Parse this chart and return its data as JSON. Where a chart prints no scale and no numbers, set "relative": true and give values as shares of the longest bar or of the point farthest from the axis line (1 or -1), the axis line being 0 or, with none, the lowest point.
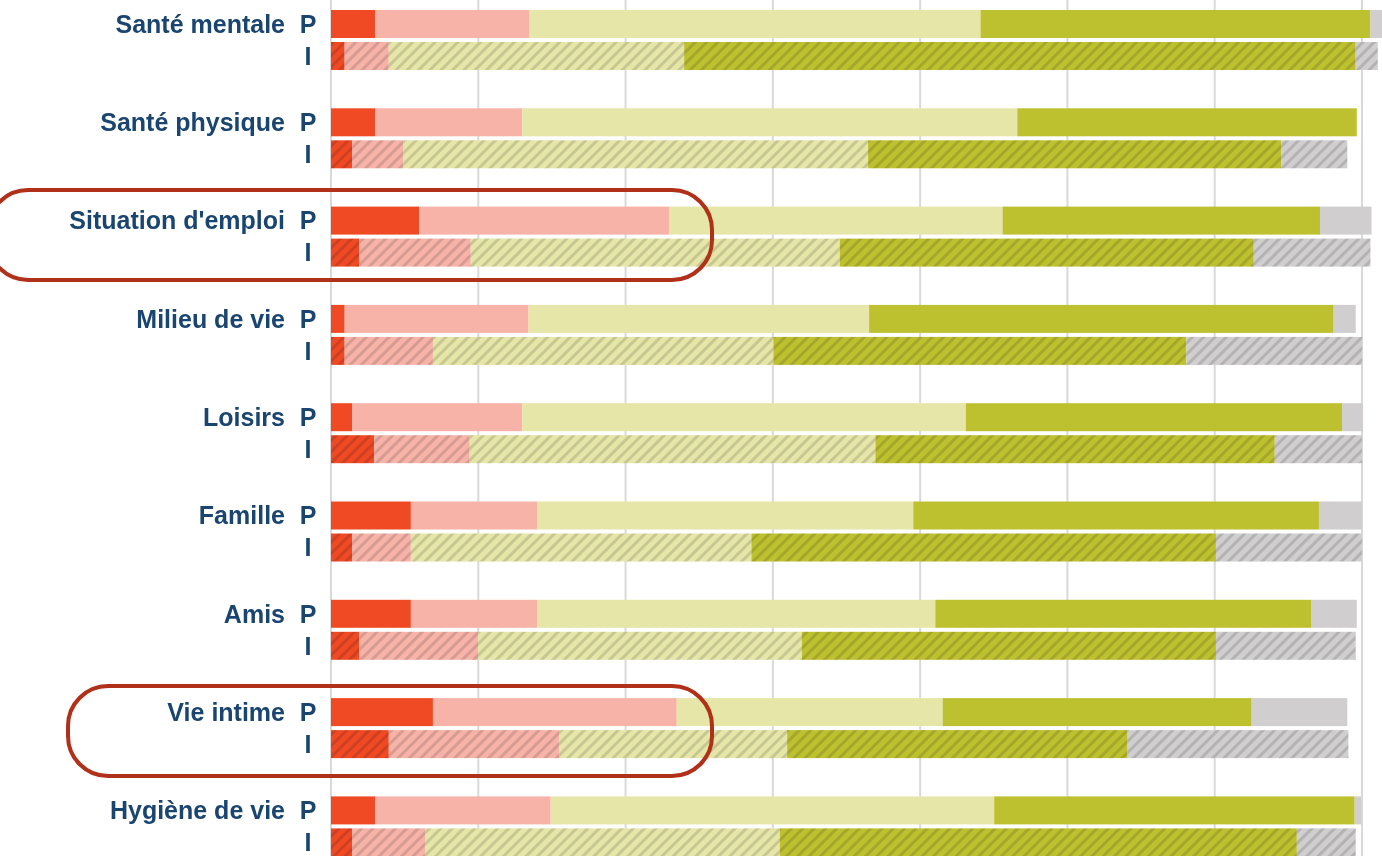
{
  "chart_data": {
    "type": "bar",
    "orientation": "horizontal",
    "stacked": true,
    "relative": true,
    "grid": "x",
    "categories": [
      "P",
      "I",
      "P",
      "I",
      "P",
      "I",
      "P",
      "I",
      "P",
      "I",
      "P",
      "I",
      "P",
      "I",
      "P",
      "I",
      "P",
      "I"
    ],
    "annotations": [
      "Santé mentale",
      "Santé physique",
      "Situation d'emploi",
      "Milieu de vie",
      "Loisirs",
      "Famille",
      "Amis",
      "Vie intime",
      "Hygiène de vie"
    ],
    "series": [
      {
        "color": "#f04a25",
        "values": [
          0.042,
          0.013,
          0.042,
          0.02,
          0.084,
          0.027,
          0.013,
          0.013,
          0.02,
          0.041,
          0.076,
          0.02,
          0.076,
          0.027,
          0.097,
          0.055,
          0.042,
          0.02
        ]
      },
      {
        "color": "#f7b3a8",
        "values": [
          0.147,
          0.042,
          0.14,
          0.049,
          0.238,
          0.106,
          0.175,
          0.084,
          0.162,
          0.091,
          0.12,
          0.056,
          0.12,
          0.113,
          0.232,
          0.162,
          0.167,
          0.07
        ]
      },
      {
        "color": "#e6e6a8",
        "values": [
          0.429,
          0.281,
          0.471,
          0.442,
          0.317,
          0.351,
          0.324,
          0.324,
          0.422,
          0.386,
          0.358,
          0.324,
          0.379,
          0.308,
          0.253,
          0.217,
          0.422,
          0.337
        ]
      },
      {
        "color": "#bec12f",
        "values": [
          0.371,
          0.639,
          0.323,
          0.393,
          0.302,
          0.394,
          0.442,
          0.393,
          0.358,
          0.38,
          0.386,
          0.442,
          0.358,
          0.394,
          0.294,
          0.324,
          0.343,
          0.492
        ]
      },
      {
        "color": "#d0cecf",
        "values": [
          0.011,
          0.021,
          null,
          0.063,
          0.049,
          0.111,
          0.021,
          0.167,
          0.02,
          0.083,
          0.041,
          0.139,
          0.043,
          0.133,
          0.091,
          0.21,
          0.006,
          0.056
        ]
      }
    ]
  }
}
